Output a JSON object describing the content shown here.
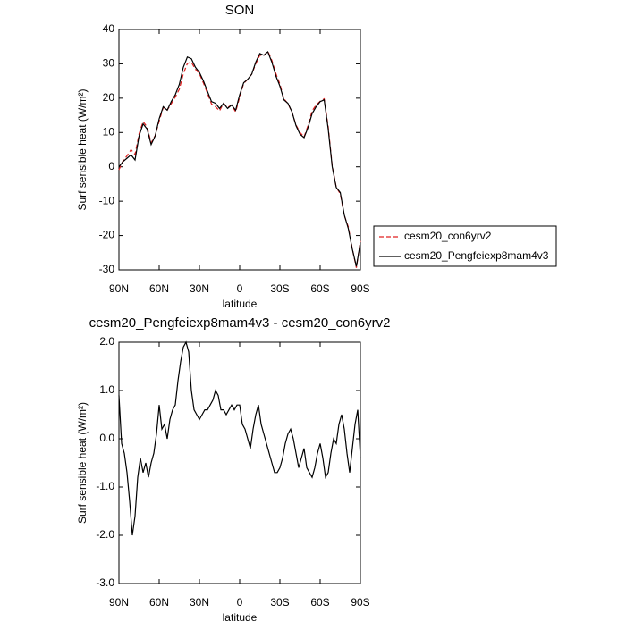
{
  "chart_data": [
    {
      "type": "line",
      "title": "SON",
      "xlabel": "latitude",
      "ylabel": "Surf sensible heat (W/m²)",
      "x": [
        90,
        87,
        84,
        81,
        78,
        75,
        72,
        69,
        66,
        63,
        60,
        57,
        54,
        51,
        48,
        45,
        42,
        39,
        36,
        33,
        30,
        27,
        24,
        21,
        18,
        15,
        12,
        9,
        6,
        3,
        0,
        -3,
        -6,
        -9,
        -12,
        -15,
        -18,
        -21,
        -24,
        -27,
        -30,
        -33,
        -36,
        -39,
        -42,
        -45,
        -48,
        -51,
        -54,
        -57,
        -60,
        -63,
        -66,
        -69,
        -72,
        -75,
        -78,
        -81,
        -84,
        -87,
        -90
      ],
      "series": [
        {
          "name": "cesm20_con6yrv2",
          "color": "#e02020",
          "dash": "dashed",
          "values": [
            -0.9,
            1.7,
            3.2,
            5.0,
            3.6,
            9.6,
            13.2,
            11.6,
            7.0,
            9.1,
            13.3,
            17.3,
            16.5,
            18.4,
            20.3,
            22.6,
            27.1,
            30.1,
            30.5,
            28.4,
            27.1,
            24.4,
            21.4,
            18.3,
            17.5,
            16.3,
            18.5,
            17.3,
            18.0,
            16.0,
            20.3,
            24.3,
            25.5,
            27.0,
            30.0,
            32.5,
            32.4,
            33.7,
            31.0,
            27.2,
            24.1,
            19.8,
            18.4,
            15.9,
            12.2,
            10.0,
            8.7,
            12.1,
            16.3,
            18.0,
            19.1,
            19.8,
            11.7,
            0.2,
            -5.9,
            -7.9,
            -14.2,
            -17.5,
            -23.9,
            -29.4,
            -21.6
          ]
        },
        {
          "name": "cesm20_Pengfeiexp8mam4v3",
          "color": "#000000",
          "dash": "solid",
          "values": [
            0,
            1.5,
            2.5,
            3.5,
            2,
            9,
            12.5,
            11,
            6.5,
            9,
            14,
            17.5,
            16.5,
            19,
            21,
            24,
            29,
            32,
            31.5,
            29,
            27.5,
            25,
            22,
            19,
            18.5,
            17,
            18.5,
            17,
            18,
            16.5,
            21,
            24.5,
            25.5,
            27,
            30.5,
            33,
            32.5,
            33.5,
            30.5,
            26.5,
            23.5,
            19.5,
            18.5,
            16,
            12,
            9.5,
            8.5,
            11.5,
            15.5,
            17.5,
            19,
            19.5,
            11,
            0,
            -6,
            -7.5,
            -14,
            -18,
            -24,
            -29,
            -22
          ]
        }
      ],
      "xlim": [
        90,
        -90
      ],
      "xticks": [
        {
          "value": 90,
          "label": "90N"
        },
        {
          "value": 60,
          "label": "60N"
        },
        {
          "value": 30,
          "label": "30N"
        },
        0,
        {
          "value": -30,
          "label": "30S"
        },
        {
          "value": -60,
          "label": "60S"
        },
        {
          "value": -90,
          "label": "90S"
        }
      ],
      "ylim": [
        -30,
        40
      ],
      "yticks": [
        -30,
        -20,
        -10,
        0,
        10,
        20,
        30,
        40
      ],
      "legend": "right"
    },
    {
      "type": "line",
      "title": "cesm20_Pengfeiexp8mam4v3 - cesm20_con6yrv2",
      "xlabel": "latitude",
      "ylabel": "Surf sensible heat (W/m²)",
      "x": [
        90,
        88,
        86,
        84,
        82,
        80,
        78,
        76,
        74,
        72,
        70,
        68,
        66,
        64,
        62,
        60,
        58,
        56,
        54,
        52,
        50,
        48,
        46,
        44,
        42,
        40,
        38,
        36,
        34,
        32,
        30,
        28,
        26,
        24,
        22,
        20,
        18,
        16,
        14,
        12,
        10,
        8,
        6,
        4,
        2,
        0,
        -2,
        -4,
        -6,
        -8,
        -10,
        -12,
        -14,
        -16,
        -18,
        -20,
        -22,
        -24,
        -26,
        -28,
        -30,
        -32,
        -34,
        -36,
        -38,
        -40,
        -42,
        -44,
        -46,
        -48,
        -50,
        -52,
        -54,
        -56,
        -58,
        -60,
        -62,
        -64,
        -66,
        -68,
        -70,
        -72,
        -74,
        -76,
        -78,
        -80,
        -82,
        -84,
        -86,
        -88,
        -90
      ],
      "values": [
        0.9,
        -0.1,
        -0.3,
        -0.7,
        -1.3,
        -2.0,
        -1.6,
        -0.8,
        -0.4,
        -0.7,
        -0.5,
        -0.8,
        -0.5,
        -0.3,
        0.1,
        0.7,
        0.2,
        0.3,
        0.0,
        0.4,
        0.6,
        0.7,
        1.2,
        1.6,
        1.9,
        2.0,
        1.8,
        1.0,
        0.6,
        0.5,
        0.4,
        0.5,
        0.6,
        0.6,
        0.7,
        0.8,
        1.0,
        0.9,
        0.6,
        0.6,
        0.5,
        0.6,
        0.7,
        0.6,
        0.7,
        0.7,
        0.3,
        0.2,
        0.0,
        -0.2,
        0.2,
        0.5,
        0.7,
        0.3,
        0.1,
        -0.1,
        -0.3,
        -0.5,
        -0.7,
        -0.7,
        -0.6,
        -0.4,
        -0.1,
        0.1,
        0.2,
        0.0,
        -0.3,
        -0.6,
        -0.4,
        -0.2,
        -0.6,
        -0.7,
        -0.8,
        -0.6,
        -0.3,
        -0.1,
        -0.4,
        -0.8,
        -0.7,
        -0.3,
        0.0,
        -0.1,
        0.3,
        0.5,
        0.2,
        -0.3,
        -0.7,
        -0.2,
        0.3,
        0.6,
        -0.4
      ],
      "color": "#000000",
      "xlim": [
        90,
        -90
      ],
      "xticks": [
        {
          "value": 90,
          "label": "90N"
        },
        {
          "value": 60,
          "label": "60N"
        },
        {
          "value": 30,
          "label": "30N"
        },
        0,
        {
          "value": -30,
          "label": "30S"
        },
        {
          "value": -60,
          "label": "60S"
        },
        {
          "value": -90,
          "label": "90S"
        }
      ],
      "ylim": [
        -3,
        2
      ],
      "yticks": [
        {
          "value": -3,
          "label": "-3.0"
        },
        {
          "value": -2,
          "label": "-2.0"
        },
        {
          "value": -1,
          "label": "-1.0"
        },
        {
          "value": 0,
          "label": "0.0"
        },
        {
          "value": 1,
          "label": "1.0"
        },
        {
          "value": 2,
          "label": "2.0"
        }
      ]
    }
  ]
}
